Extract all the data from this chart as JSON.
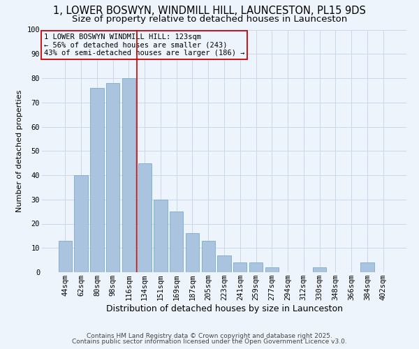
{
  "title": "1, LOWER BOSWYN, WINDMILL HILL, LAUNCESTON, PL15 9DS",
  "subtitle": "Size of property relative to detached houses in Launceston",
  "xlabel": "Distribution of detached houses by size in Launceston",
  "ylabel": "Number of detached properties",
  "categories": [
    "44sqm",
    "62sqm",
    "80sqm",
    "98sqm",
    "116sqm",
    "134sqm",
    "151sqm",
    "169sqm",
    "187sqm",
    "205sqm",
    "223sqm",
    "241sqm",
    "259sqm",
    "277sqm",
    "294sqm",
    "312sqm",
    "330sqm",
    "348sqm",
    "366sqm",
    "384sqm",
    "402sqm"
  ],
  "values": [
    13,
    40,
    76,
    78,
    80,
    45,
    30,
    25,
    16,
    13,
    7,
    4,
    4,
    2,
    0,
    0,
    2,
    0,
    0,
    4,
    0
  ],
  "bar_color": "#aac4e0",
  "bar_edge_color": "#7aaad0",
  "grid_color": "#c8d8ea",
  "bg_color": "#eef4fb",
  "vline_x_index": 4,
  "vline_color": "#cc0000",
  "annotation_text": "1 LOWER BOSWYN WINDMILL HILL: 123sqm\n← 56% of detached houses are smaller (243)\n43% of semi-detached houses are larger (186) →",
  "annotation_box_color": "#cc0000",
  "ylim": [
    0,
    100
  ],
  "yticks": [
    0,
    10,
    20,
    30,
    40,
    50,
    60,
    70,
    80,
    90,
    100
  ],
  "footer1": "Contains HM Land Registry data © Crown copyright and database right 2025.",
  "footer2": "Contains public sector information licensed under the Open Government Licence v3.0.",
  "title_fontsize": 10.5,
  "subtitle_fontsize": 9.5,
  "xlabel_fontsize": 9,
  "ylabel_fontsize": 8,
  "tick_fontsize": 7.5,
  "annotation_fontsize": 7.5,
  "footer_fontsize": 6.5
}
